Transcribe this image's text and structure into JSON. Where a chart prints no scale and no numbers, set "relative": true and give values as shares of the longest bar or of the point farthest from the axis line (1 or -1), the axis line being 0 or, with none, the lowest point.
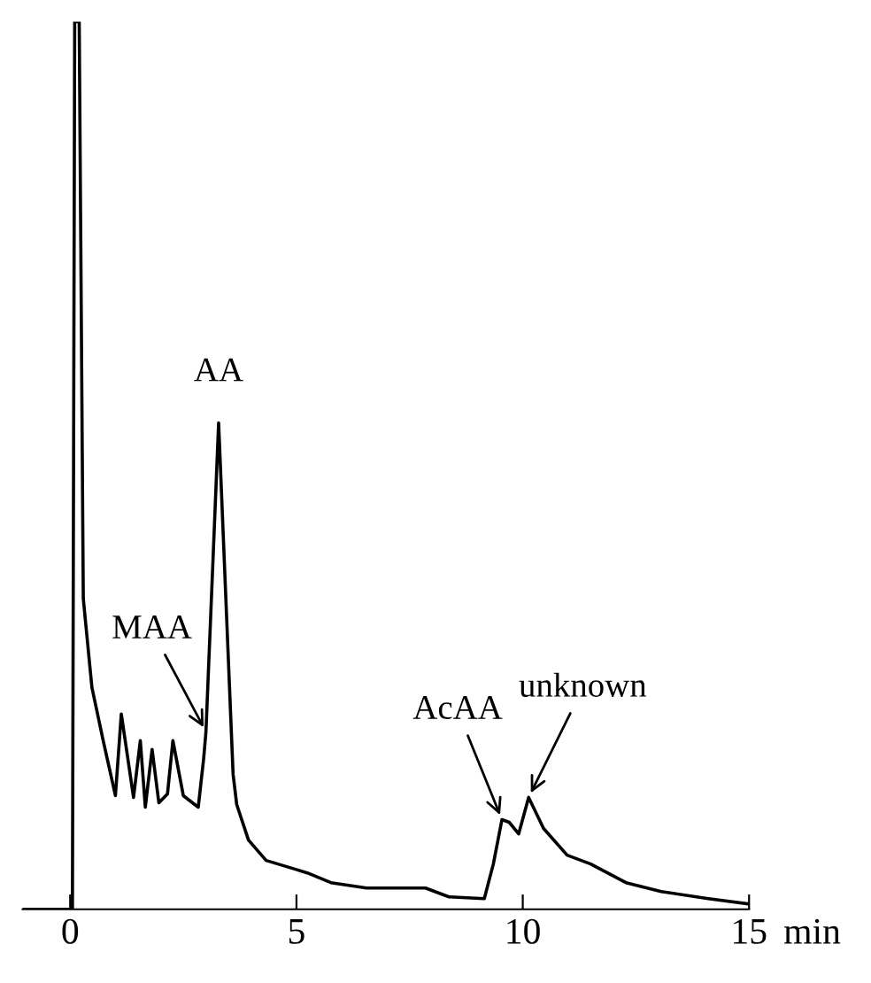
{
  "chart_data": {
    "type": "line",
    "relative": true,
    "xlabel": "min",
    "xlim": [
      -1.05,
      15
    ],
    "xticks": [
      0,
      5,
      10,
      15
    ],
    "series": [
      {
        "color": "#000000",
        "x": [
          -1.05,
          0.05,
          0.1,
          0.2,
          0.29,
          0.48,
          0.73,
          1.0,
          1.13,
          1.4,
          1.55,
          1.66,
          1.81,
          1.96,
          2.15,
          2.27,
          2.5,
          2.83,
          2.95,
          3.0,
          3.28,
          3.6,
          3.68,
          3.94,
          4.33,
          4.98,
          5.24,
          5.76,
          6.55,
          7.85,
          8.37,
          9.15,
          9.35,
          9.54,
          9.7,
          9.91,
          10.13,
          10.46,
          10.98,
          11.5,
          12.28,
          13.06,
          14.1,
          15.0
        ],
        "values": [
          0,
          0,
          1,
          1,
          0.35,
          0.25,
          0.19,
          0.128,
          0.22,
          0.126,
          0.19,
          0.115,
          0.18,
          0.12,
          0.13,
          0.19,
          0.128,
          0.115,
          0.17,
          0.2,
          0.548,
          0.152,
          0.118,
          0.078,
          0.055,
          0.045,
          0.041,
          0.03,
          0.024,
          0.024,
          0.014,
          0.012,
          0.051,
          0.101,
          0.098,
          0.085,
          0.126,
          0.091,
          0.061,
          0.051,
          0.03,
          0.02,
          0.012,
          0.006
        ]
      }
    ],
    "annotations": [
      {
        "text": "AA",
        "x": 3.28,
        "y": 0.548
      },
      {
        "text": "MAA",
        "x": 3.0,
        "y": 0.2
      },
      {
        "text": "AcAA",
        "x": 9.54,
        "y": 0.101
      },
      {
        "text": "unknown",
        "x": 10.13,
        "y": 0.126
      }
    ],
    "grid": false,
    "legend": false,
    "line_style": "solid",
    "marker": "none"
  }
}
